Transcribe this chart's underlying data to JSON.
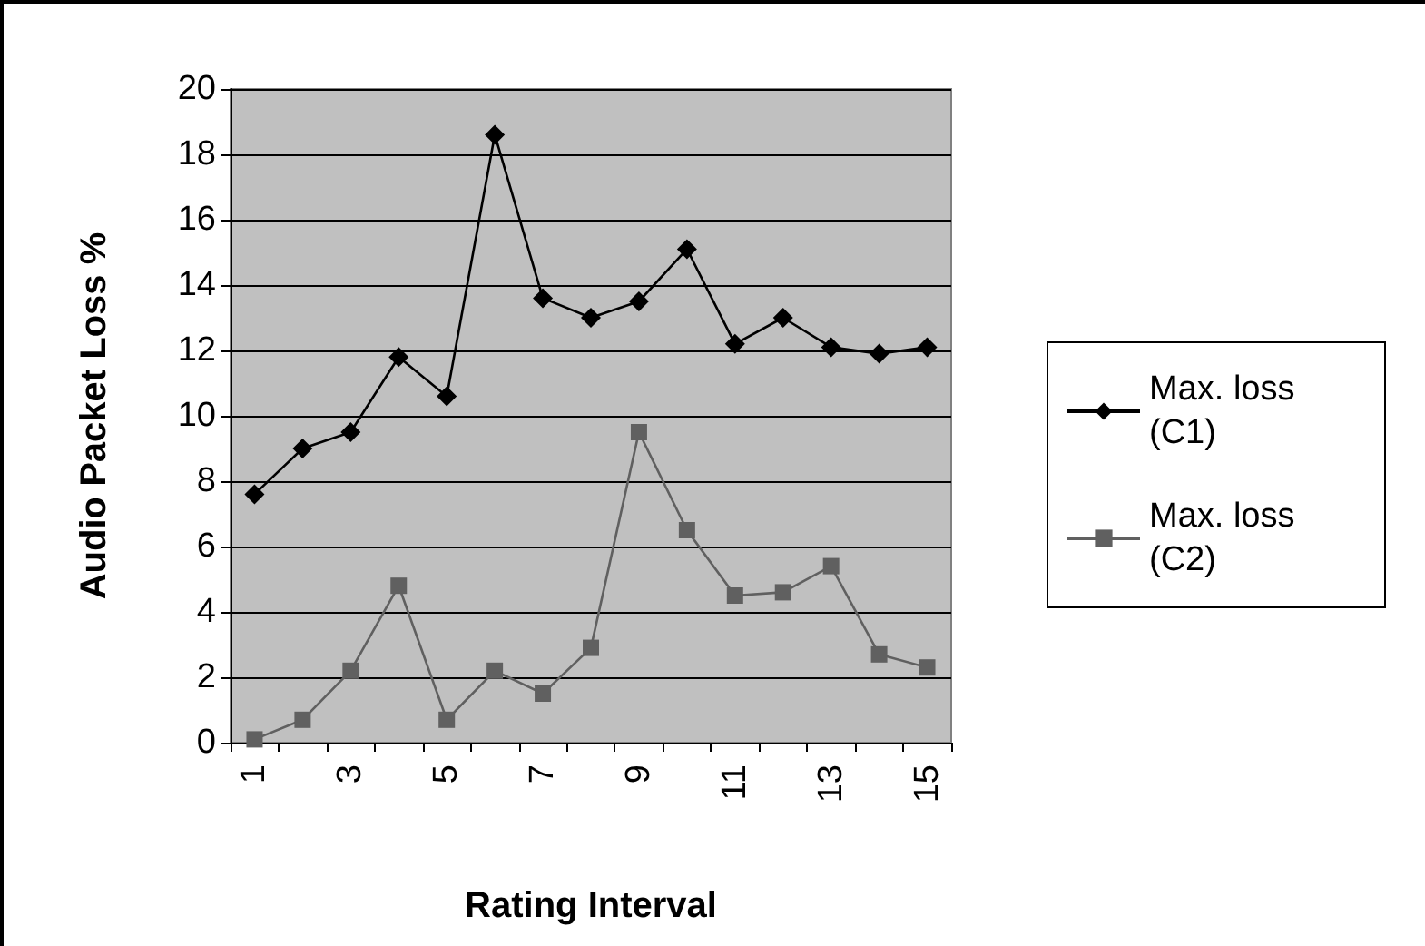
{
  "chart_data": {
    "type": "line",
    "xlabel": "Rating Interval",
    "ylabel": "Audio Packet Loss %",
    "categories": [
      "1",
      null,
      "3",
      null,
      "5",
      null,
      "7",
      null,
      "9",
      null,
      "11",
      null,
      "13",
      null,
      "15"
    ],
    "series": [
      {
        "name": "Max. loss (C1)",
        "color": "#000000",
        "marker": "diamond",
        "values": [
          7.6,
          9.0,
          9.5,
          11.8,
          10.6,
          18.6,
          13.6,
          13.0,
          13.5,
          15.1,
          12.2,
          13.0,
          12.1,
          11.9,
          12.1
        ]
      },
      {
        "name": "Max. loss (C2)",
        "color": "#606060",
        "marker": "square",
        "values": [
          0.1,
          0.7,
          2.2,
          4.8,
          0.7,
          2.2,
          1.5,
          2.9,
          9.5,
          6.5,
          4.5,
          4.6,
          5.4,
          2.7,
          2.3
        ]
      }
    ],
    "ylim": [
      0,
      20
    ],
    "yticks": [
      0,
      2,
      4,
      6,
      8,
      10,
      12,
      14,
      16,
      18,
      20
    ],
    "grid": "y",
    "legend": "right"
  }
}
